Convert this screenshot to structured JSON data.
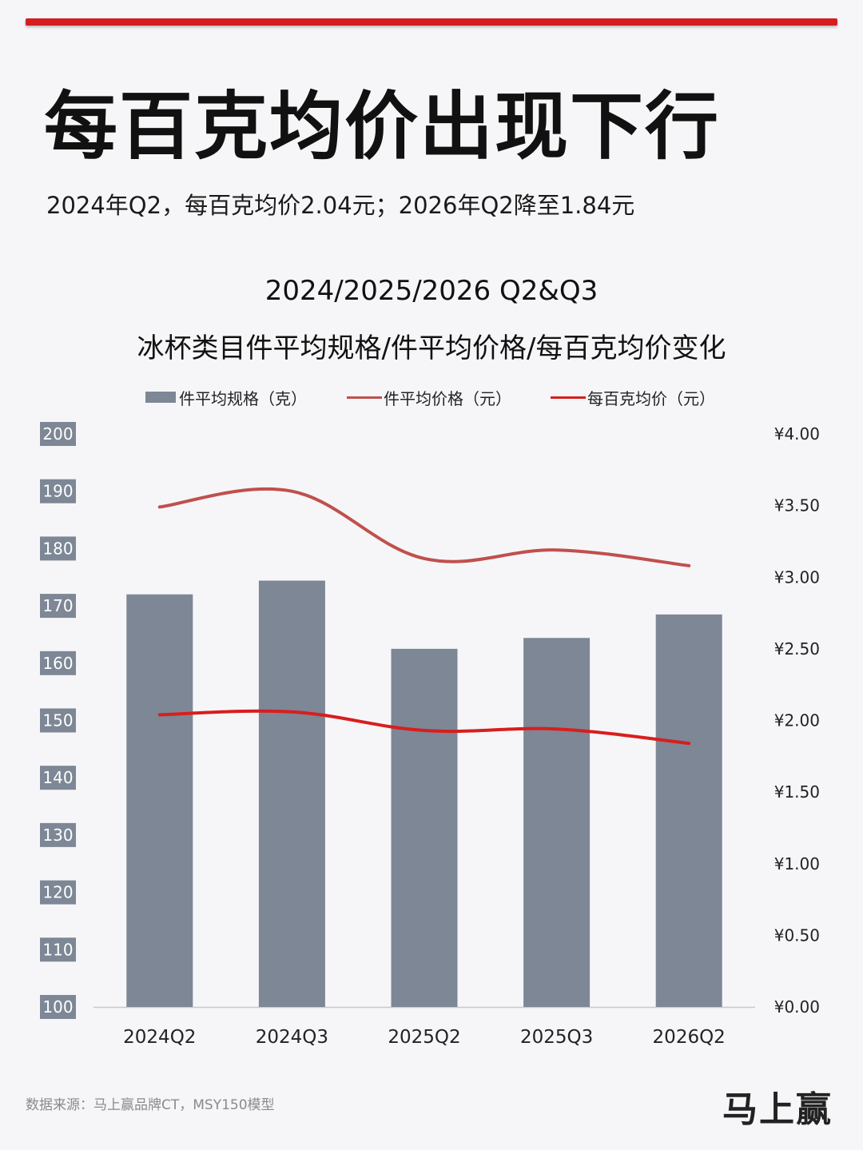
{
  "header": {
    "title": "每百克均价出现下行",
    "subtitle": "2024年Q2，每百克均价2.04元；2026年Q2降至1.84元"
  },
  "chart_data": {
    "type": "bar",
    "title": "2024/2025/2026 Q2&Q3",
    "subtitle": "冰杯类目件平均规格/件平均价格/每百克均价变化",
    "categories": [
      "2024Q2",
      "2024Q3",
      "2025Q2",
      "2025Q3",
      "2026Q2"
    ],
    "legend_position": "top",
    "series": [
      {
        "name": "件平均规格（克）",
        "type": "bar",
        "axis": "left",
        "color": "#7d8795",
        "values": [
          172,
          174.4,
          162.5,
          164.4,
          168.5
        ]
      },
      {
        "name": "件平均价格（元）",
        "type": "line",
        "axis": "right",
        "color": "#c0504d",
        "values": [
          3.49,
          3.6,
          3.13,
          3.19,
          3.08
        ]
      },
      {
        "name": "每百克均价（元）",
        "type": "line",
        "axis": "right",
        "color": "#d81e1e",
        "values": [
          2.04,
          2.06,
          1.93,
          1.94,
          1.84
        ]
      }
    ],
    "y_left": {
      "min": 100,
      "max": 200,
      "ticks": [
        "100",
        "110",
        "120",
        "130",
        "140",
        "150",
        "160",
        "170",
        "180",
        "190",
        "200"
      ]
    },
    "y_right": {
      "min": 0,
      "max": 4,
      "ticks": [
        "¥0.00",
        "¥0.50",
        "¥1.00",
        "¥1.50",
        "¥2.00",
        "¥2.50",
        "¥3.00",
        "¥3.50",
        "¥4.00"
      ]
    },
    "grid": false
  },
  "footer": {
    "source": "数据来源：马上赢品牌CT，MSY150模型",
    "logo": "马上赢"
  }
}
